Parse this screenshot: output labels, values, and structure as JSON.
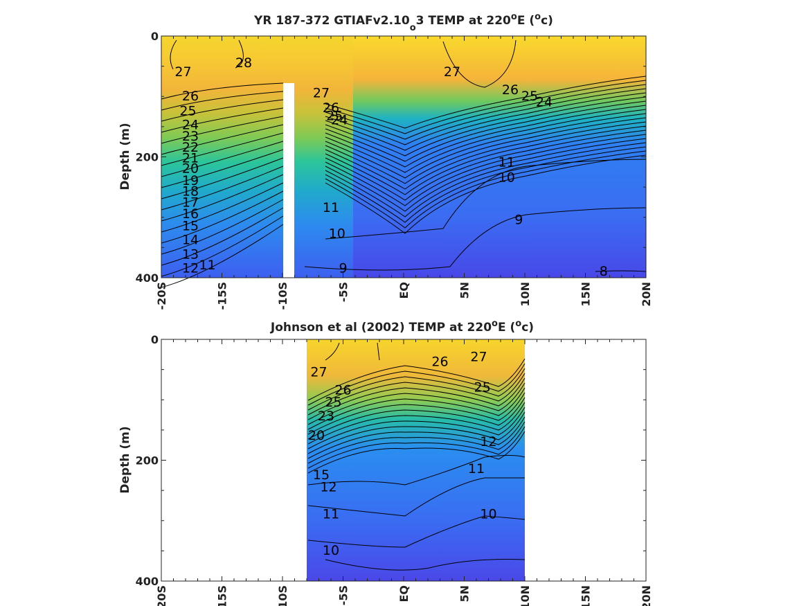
{
  "colormap": [
    "#4a3ee8",
    "#3a5cf0",
    "#2e86f2",
    "#20b2c8",
    "#2fc895",
    "#8fcb52",
    "#d6bd33",
    "#f6a935",
    "#f9dc2a"
  ],
  "chart_data": [
    {
      "type": "heatmap",
      "title_main": "YR 187-372 GTIAFv2.10",
      "title_sub": "o",
      "title_rest": "3 TEMP at 220",
      "title_sup": "o",
      "title_end": "E (",
      "title_sup2": "o",
      "title_close": "c)",
      "ylabel": "Depth (m)",
      "xlim": [
        -20,
        20
      ],
      "ylim": [
        400,
        0
      ],
      "x_ticks": [
        "-20S",
        "-15S",
        "-10S",
        "-5S",
        "EQ",
        "5N",
        "10N",
        "15N",
        "20N"
      ],
      "y_ticks": [
        "0",
        "200",
        "400"
      ],
      "data_extent_lat": [
        -20,
        20
      ],
      "data_gap_lat": [
        -10,
        -9.2
      ],
      "data_gap_depth": [
        78,
        400
      ],
      "contour_labels": [
        {
          "text": "28",
          "lat": -13.2,
          "depth": 45
        },
        {
          "text": "27",
          "lat": -18.2,
          "depth": 60
        },
        {
          "text": "26",
          "lat": -17.6,
          "depth": 100
        },
        {
          "text": "25",
          "lat": -17.8,
          "depth": 125
        },
        {
          "text": "24",
          "lat": -17.6,
          "depth": 148
        },
        {
          "text": "23",
          "lat": -17.6,
          "depth": 167
        },
        {
          "text": "22",
          "lat": -17.6,
          "depth": 185
        },
        {
          "text": "21",
          "lat": -17.6,
          "depth": 203
        },
        {
          "text": "20",
          "lat": -17.6,
          "depth": 220
        },
        {
          "text": "19",
          "lat": -17.6,
          "depth": 240
        },
        {
          "text": "18",
          "lat": -17.6,
          "depth": 258
        },
        {
          "text": "17",
          "lat": -17.6,
          "depth": 276
        },
        {
          "text": "16",
          "lat": -17.6,
          "depth": 295
        },
        {
          "text": "15",
          "lat": -17.6,
          "depth": 315
        },
        {
          "text": "14",
          "lat": -17.6,
          "depth": 338
        },
        {
          "text": "13",
          "lat": -17.6,
          "depth": 362
        },
        {
          "text": "12",
          "lat": -17.6,
          "depth": 385
        },
        {
          "text": "11",
          "lat": -16.2,
          "depth": 380
        },
        {
          "text": "27",
          "lat": -6.8,
          "depth": 95
        },
        {
          "text": "26",
          "lat": -6.0,
          "depth": 120
        },
        {
          "text": "25",
          "lat": -5.7,
          "depth": 133
        },
        {
          "text": "24",
          "lat": -5.3,
          "depth": 140
        },
        {
          "text": "10",
          "lat": -5.5,
          "depth": 328
        },
        {
          "text": "11",
          "lat": -6.0,
          "depth": 285
        },
        {
          "text": "9",
          "lat": -5.0,
          "depth": 385
        },
        {
          "text": "27",
          "lat": 4.0,
          "depth": 60
        },
        {
          "text": "26",
          "lat": 8.8,
          "depth": 90
        },
        {
          "text": "25",
          "lat": 10.4,
          "depth": 100
        },
        {
          "text": "24",
          "lat": 11.6,
          "depth": 110
        },
        {
          "text": "11",
          "lat": 8.5,
          "depth": 210
        },
        {
          "text": "10",
          "lat": 8.5,
          "depth": 235
        },
        {
          "text": "9",
          "lat": 9.5,
          "depth": 305
        },
        {
          "text": "8",
          "lat": 16.5,
          "depth": 390
        }
      ]
    },
    {
      "type": "heatmap",
      "title_main": "Johnson et al (2002) TEMP at 220",
      "title_sup": "o",
      "title_end": "E (",
      "title_sup2": "o",
      "title_close": "c)",
      "ylabel": "Depth (m)",
      "xlim": [
        -20,
        20
      ],
      "ylim": [
        400,
        0
      ],
      "x_ticks": [
        "-20S",
        "-15S",
        "-10S",
        "-5S",
        "EQ",
        "5N",
        "10N",
        "15N",
        "20N"
      ],
      "y_ticks": [
        "0",
        "200",
        "400"
      ],
      "data_extent_lat": [
        -8,
        10
      ],
      "contour_labels": [
        {
          "text": "27",
          "lat": -7.0,
          "depth": 55
        },
        {
          "text": "26",
          "lat": -5.0,
          "depth": 85
        },
        {
          "text": "25",
          "lat": -5.8,
          "depth": 105
        },
        {
          "text": "23",
          "lat": -6.4,
          "depth": 128
        },
        {
          "text": "20",
          "lat": -7.2,
          "depth": 160
        },
        {
          "text": "15",
          "lat": -6.8,
          "depth": 225
        },
        {
          "text": "12",
          "lat": -6.2,
          "depth": 245
        },
        {
          "text": "11",
          "lat": -6.0,
          "depth": 290
        },
        {
          "text": "10",
          "lat": -6.0,
          "depth": 350
        },
        {
          "text": "26",
          "lat": 3.0,
          "depth": 38
        },
        {
          "text": "27",
          "lat": 6.2,
          "depth": 30
        },
        {
          "text": "25",
          "lat": 6.5,
          "depth": 80
        },
        {
          "text": "12",
          "lat": 7.0,
          "depth": 170
        },
        {
          "text": "11",
          "lat": 6.0,
          "depth": 215
        },
        {
          "text": "10",
          "lat": 7.0,
          "depth": 290
        }
      ]
    }
  ]
}
